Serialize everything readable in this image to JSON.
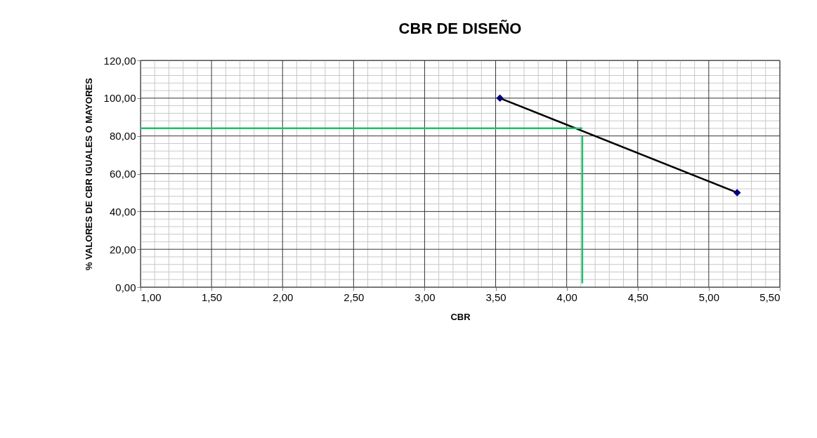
{
  "chart_data": {
    "type": "line",
    "title": "CBR DE DISEÑO",
    "xlabel": "CBR",
    "ylabel": "% VALORES DE CBR IGUALES O MAYORES",
    "xlim": [
      1,
      5.5
    ],
    "ylim": [
      0,
      120
    ],
    "xticks": [
      {
        "value": 1,
        "label": "1,00"
      },
      {
        "value": 1.5,
        "label": "1,50"
      },
      {
        "value": 2,
        "label": "2,00"
      },
      {
        "value": 2.5,
        "label": "2,50"
      },
      {
        "value": 3,
        "label": "3,00"
      },
      {
        "value": 3.5,
        "label": "3,50"
      },
      {
        "value": 4,
        "label": "4,00"
      },
      {
        "value": 4.5,
        "label": "4,50"
      },
      {
        "value": 5,
        "label": "5,00"
      },
      {
        "value": 5.5,
        "label": "5,50"
      }
    ],
    "yticks": [
      {
        "value": 0,
        "label": "0,00"
      },
      {
        "value": 20,
        "label": "20,00"
      },
      {
        "value": 40,
        "label": "40,00"
      },
      {
        "value": 60,
        "label": "60,00"
      },
      {
        "value": 80,
        "label": "80,00"
      },
      {
        "value": 100,
        "label": "100,00"
      },
      {
        "value": 120,
        "label": "120,00"
      }
    ],
    "grid": true,
    "series": [
      {
        "color": "#000000",
        "x": [
          3.53,
          5.2
        ],
        "values": [
          100,
          50
        ]
      },
      {
        "type": "scatter",
        "color": "#000080",
        "marker": "diamond",
        "x": [
          3.53,
          5.2
        ],
        "values": [
          100,
          50
        ]
      },
      {
        "color": "#1fbf6a",
        "x": [
          1.0,
          4.11
        ],
        "values": [
          84.1,
          84.1
        ]
      },
      {
        "color": "#1fbf6a",
        "x": [
          4.11,
          4.11
        ],
        "values": [
          80,
          2
        ]
      }
    ]
  }
}
